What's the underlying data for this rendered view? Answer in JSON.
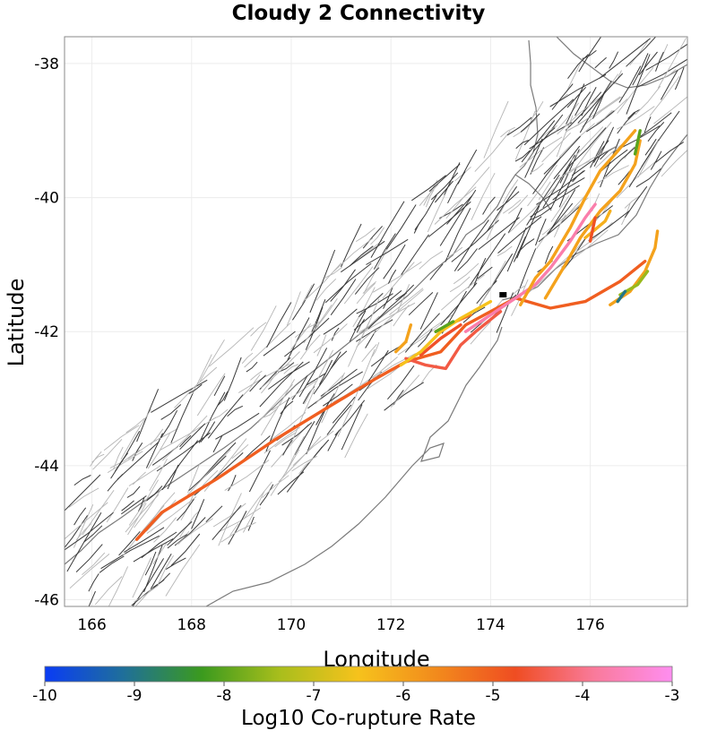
{
  "title": "Cloudy 2 Connectivity",
  "axes": {
    "xlabel": "Longitude",
    "ylabel": "Latitude",
    "xticks": [
      166,
      168,
      170,
      172,
      174,
      176
    ],
    "xtick_labels": [
      "166",
      "168",
      "170",
      "172",
      "174",
      "176"
    ],
    "yticks": [
      -38,
      -40,
      -42,
      -44,
      -46
    ],
    "ytick_labels": [
      "-38",
      "-40",
      "-42",
      "-44",
      "-46"
    ],
    "xlim": [
      165.45,
      177.95
    ],
    "ylim": [
      -46.1,
      -37.6
    ],
    "grid": true
  },
  "colorbar": {
    "label": "Log10 Co-rupture Rate",
    "ticks": [
      -10,
      -9,
      -8,
      -7,
      -6,
      -5,
      -4,
      -3
    ],
    "tick_labels": [
      "-10",
      "-9",
      "-8",
      "-7",
      "-6",
      "-5",
      "-4",
      "-3"
    ],
    "range": [
      -10,
      -3
    ],
    "colors": [
      "#0a3cf5",
      "#1f6f9a",
      "#3b9a1e",
      "#a9be1c",
      "#f6c21c",
      "#f28a1c",
      "#ef4d22",
      "#f97a9a",
      "#ff8ef0"
    ],
    "orientation": "horizontal"
  },
  "chart_data": {
    "type": "map",
    "projection": "lon-lat",
    "marker": {
      "lon": 174.25,
      "lat": -41.45,
      "color": "#000000"
    },
    "ruptures": [
      {
        "value": -5.0,
        "points": [
          [
            166.9,
            -45.1
          ],
          [
            167.4,
            -44.7
          ],
          [
            168.5,
            -44.2
          ],
          [
            169.7,
            -43.6
          ],
          [
            170.8,
            -43.1
          ],
          [
            171.7,
            -42.7
          ],
          [
            172.3,
            -42.45
          ],
          [
            173.0,
            -42.3
          ],
          [
            173.5,
            -41.9
          ],
          [
            174.0,
            -41.7
          ],
          [
            174.5,
            -41.5
          ],
          [
            175.2,
            -41.65
          ],
          [
            175.9,
            -41.55
          ],
          [
            176.6,
            -41.25
          ],
          [
            177.1,
            -40.95
          ]
        ]
      },
      {
        "value": -4.5,
        "points": [
          [
            172.3,
            -42.4
          ],
          [
            172.7,
            -42.5
          ],
          [
            173.1,
            -42.55
          ],
          [
            173.4,
            -42.2
          ],
          [
            173.7,
            -42.0
          ],
          [
            174.2,
            -41.7
          ]
        ]
      },
      {
        "value": -4.7,
        "points": [
          [
            172.6,
            -42.35
          ],
          [
            173.0,
            -42.1
          ],
          [
            173.4,
            -41.9
          ]
        ]
      },
      {
        "value": -5.2,
        "points": [
          [
            172.9,
            -42.0
          ],
          [
            173.3,
            -41.85
          ],
          [
            173.6,
            -41.75
          ]
        ]
      },
      {
        "value": -3.7,
        "points": [
          [
            173.5,
            -42.0
          ],
          [
            173.9,
            -41.8
          ],
          [
            174.2,
            -41.65
          ],
          [
            174.5,
            -41.5
          ],
          [
            174.9,
            -41.3
          ],
          [
            175.2,
            -41.05
          ],
          [
            175.6,
            -40.65
          ],
          [
            175.9,
            -40.3
          ],
          [
            176.1,
            -40.1
          ]
        ]
      },
      {
        "value": -6.0,
        "points": [
          [
            174.6,
            -41.6
          ],
          [
            174.9,
            -41.2
          ],
          [
            175.2,
            -40.95
          ],
          [
            175.6,
            -40.45
          ],
          [
            175.9,
            -40.0
          ],
          [
            176.2,
            -39.6
          ],
          [
            176.5,
            -39.35
          ],
          [
            176.9,
            -39.0
          ]
        ]
      },
      {
        "value": -6.0,
        "points": [
          [
            175.1,
            -41.5
          ],
          [
            175.5,
            -41.0
          ],
          [
            175.8,
            -40.6
          ],
          [
            176.2,
            -40.2
          ],
          [
            176.6,
            -39.9
          ],
          [
            176.9,
            -39.5
          ],
          [
            177.0,
            -39.15
          ]
        ]
      },
      {
        "value": -6.2,
        "points": [
          [
            175.9,
            -40.6
          ],
          [
            176.3,
            -40.35
          ],
          [
            176.4,
            -40.2
          ]
        ]
      },
      {
        "value": -6.0,
        "points": [
          [
            176.4,
            -41.6
          ],
          [
            176.8,
            -41.4
          ],
          [
            177.1,
            -41.1
          ],
          [
            177.3,
            -40.75
          ],
          [
            177.35,
            -40.5
          ]
        ]
      },
      {
        "value": -4.8,
        "points": [
          [
            176.0,
            -40.65
          ],
          [
            176.1,
            -40.3
          ]
        ]
      },
      {
        "value": -6.0,
        "points": [
          [
            172.1,
            -42.3
          ],
          [
            172.3,
            -42.15
          ],
          [
            172.4,
            -41.9
          ]
        ]
      },
      {
        "value": -6.5,
        "points": [
          [
            172.2,
            -42.5
          ],
          [
            172.6,
            -42.3
          ],
          [
            173.0,
            -42.0
          ],
          [
            173.4,
            -41.8
          ],
          [
            174.0,
            -41.55
          ]
        ]
      },
      {
        "value": -7.5,
        "points": [
          [
            176.6,
            -41.45
          ],
          [
            176.95,
            -41.3
          ],
          [
            177.15,
            -41.1
          ]
        ]
      },
      {
        "value": -8.0,
        "points": [
          [
            172.9,
            -42.0
          ],
          [
            173.25,
            -41.85
          ]
        ]
      },
      {
        "value": -8.0,
        "points": [
          [
            177.0,
            -39.0
          ],
          [
            176.9,
            -39.35
          ]
        ]
      },
      {
        "value": -9.0,
        "points": [
          [
            176.55,
            -41.55
          ],
          [
            176.7,
            -41.4
          ]
        ]
      }
    ]
  }
}
